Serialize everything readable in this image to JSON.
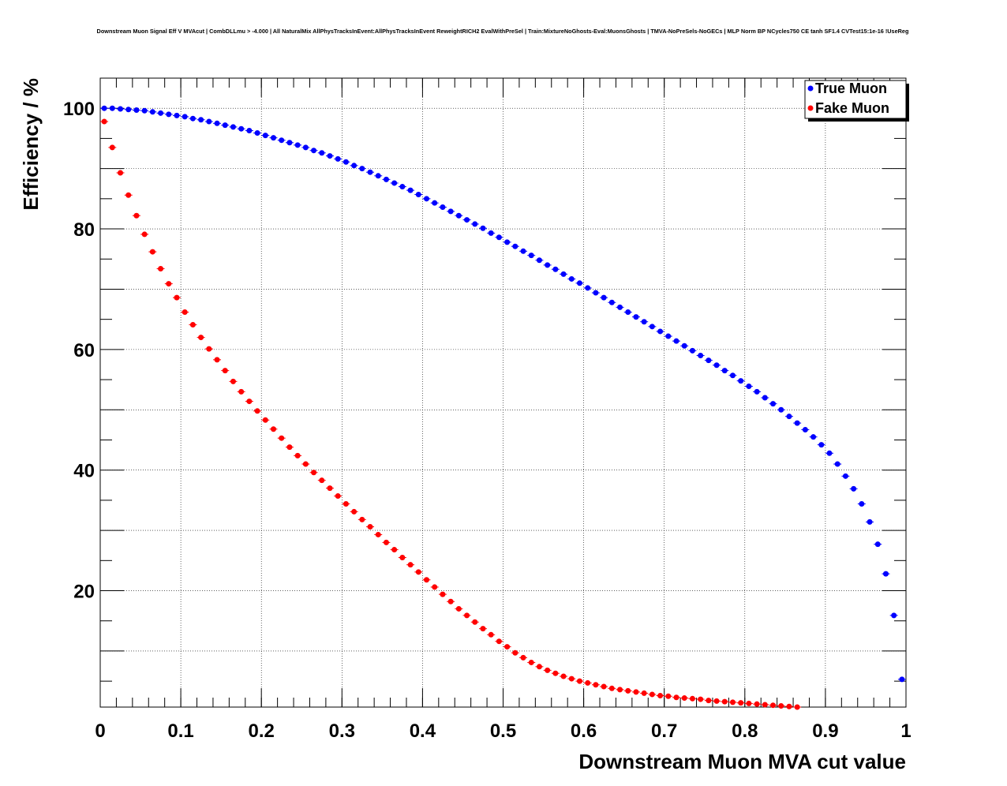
{
  "chart_data": {
    "type": "scatter",
    "title": "Downstream Muon Signal Eff V MVAcut | CombDLLmu > -4.000 | All NaturalMix AllPhysTracksInEvent:AllPhysTracksInEvent ReweightRICH2 EvalWithPreSel | Train:MixtureNoGhosts-Eval:MuonsGhosts | TMVA-NoPreSels-NoGECs | MLP Norm BP NCycles750 CE tanh SF1.4 CVTest15:1e-16 !UseReg",
    "xlabel": "Downstream Muon MVA cut value",
    "ylabel": "Efficiency / %",
    "xlim": [
      0,
      1
    ],
    "ylim": [
      0.7,
      105
    ],
    "xticks": [
      "0",
      "0.1",
      "0.2",
      "0.3",
      "0.4",
      "0.5",
      "0.6",
      "0.7",
      "0.8",
      "0.9",
      "1"
    ],
    "yticks": [
      "20",
      "40",
      "60",
      "80",
      "100"
    ],
    "grid": true,
    "legend_position": "top-right",
    "x_start": 0.005,
    "x_step": 0.01,
    "series": [
      {
        "name": "True Muon",
        "color": "#0000ff",
        "values": [
          100.0,
          100.0,
          99.9,
          99.8,
          99.7,
          99.6,
          99.4,
          99.2,
          99.0,
          98.8,
          98.6,
          98.3,
          98.1,
          97.8,
          97.5,
          97.2,
          96.9,
          96.6,
          96.3,
          95.9,
          95.5,
          95.1,
          94.7,
          94.3,
          93.9,
          93.5,
          93.0,
          92.6,
          92.1,
          91.6,
          91.1,
          90.5,
          90.0,
          89.4,
          88.8,
          88.2,
          87.6,
          87.0,
          86.4,
          85.7,
          85.0,
          84.3,
          83.6,
          82.9,
          82.2,
          81.5,
          80.8,
          80.1,
          79.3,
          78.6,
          77.8,
          77.1,
          76.3,
          75.6,
          74.8,
          74.0,
          73.3,
          72.5,
          71.7,
          71.0,
          70.2,
          69.4,
          68.6,
          67.8,
          67.0,
          66.2,
          65.4,
          64.6,
          63.8,
          63.0,
          62.2,
          61.4,
          60.6,
          59.8,
          59.0,
          58.2,
          57.4,
          56.5,
          55.7,
          54.8,
          53.9,
          53.0,
          52.0,
          51.0,
          50.0,
          48.9,
          47.8,
          46.7,
          45.5,
          44.2,
          42.8,
          41.0,
          39.0,
          36.9,
          34.4,
          31.4,
          27.7,
          22.8,
          15.9,
          5.3
        ]
      },
      {
        "name": "Fake Muon",
        "color": "#ff0000",
        "values": [
          97.8,
          93.5,
          89.3,
          85.6,
          82.2,
          79.1,
          76.2,
          73.4,
          70.9,
          68.6,
          66.2,
          64.1,
          62.0,
          60.1,
          58.3,
          56.5,
          54.7,
          53.0,
          51.4,
          49.8,
          48.3,
          46.8,
          45.3,
          43.8,
          42.4,
          41.0,
          39.6,
          38.3,
          37.0,
          35.7,
          34.4,
          33.1,
          31.8,
          30.6,
          29.3,
          28.0,
          26.8,
          25.5,
          24.3,
          23.1,
          21.8,
          20.6,
          19.4,
          18.2,
          17.0,
          15.9,
          14.8,
          13.7,
          12.7,
          11.6,
          10.7,
          9.7,
          8.9,
          8.1,
          7.4,
          6.8,
          6.3,
          5.8,
          5.4,
          5.0,
          4.7,
          4.4,
          4.1,
          3.8,
          3.6,
          3.4,
          3.2,
          3.0,
          2.8,
          2.6,
          2.5,
          2.3,
          2.2,
          2.1,
          2.0,
          1.8,
          1.7,
          1.6,
          1.5,
          1.4,
          1.3,
          1.2,
          1.1,
          1.0,
          0.9,
          0.8,
          0.7
        ]
      }
    ]
  }
}
